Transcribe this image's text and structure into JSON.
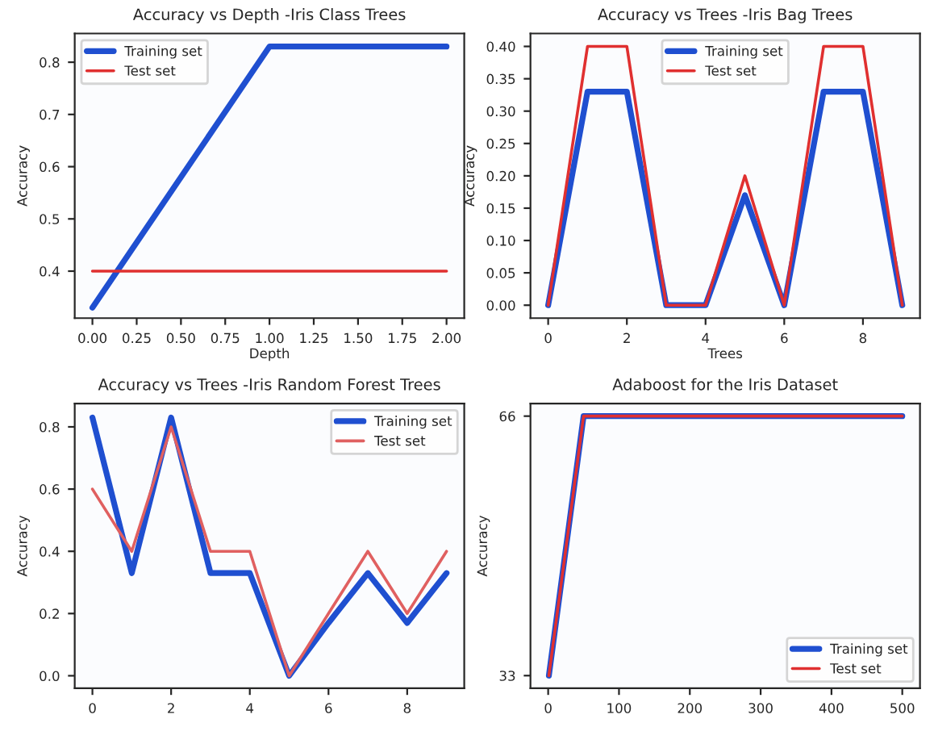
{
  "chart_data": [
    {
      "type": "line",
      "title": "Accuracy vs Depth -Iris Class Trees",
      "xlabel": "Depth",
      "ylabel": "Accuracy",
      "x": [
        0,
        1,
        2
      ],
      "xlim": [
        -0.1,
        2.1
      ],
      "ylim": [
        0.31,
        0.855
      ],
      "xticks": [
        {
          "value": 0,
          "label": "0.00"
        },
        {
          "value": 0.25,
          "label": "0.25"
        },
        {
          "value": 0.5,
          "label": "0.50"
        },
        {
          "value": 0.75,
          "label": "0.75"
        },
        {
          "value": 1,
          "label": "1.00"
        },
        {
          "value": 1.25,
          "label": "1.25"
        },
        {
          "value": 1.5,
          "label": "1.50"
        },
        {
          "value": 1.75,
          "label": "1.75"
        },
        {
          "value": 2,
          "label": "2.00"
        }
      ],
      "yticks": [
        0.4,
        0.5,
        0.6,
        0.7,
        0.8
      ],
      "legend": "top left",
      "series": [
        {
          "name": "Training set",
          "color": "#1f4fd0",
          "values": [
            0.33,
            0.83,
            0.83
          ]
        },
        {
          "name": "Test set",
          "color": "#e03030",
          "values": [
            0.4,
            0.4,
            0.4
          ]
        }
      ]
    },
    {
      "type": "line",
      "title": "Accuracy vs Trees -Iris Bag Trees",
      "xlabel": "Trees",
      "ylabel": "Accuracy",
      "x": [
        0,
        1,
        2,
        3,
        4,
        5,
        6,
        7,
        8,
        9
      ],
      "xlim": [
        -0.45,
        9.45
      ],
      "ylim": [
        -0.02,
        0.42
      ],
      "xticks": [
        0,
        2,
        4,
        6,
        8
      ],
      "yticks": [
        {
          "value": 0,
          "label": "0.00"
        },
        {
          "value": 0.05,
          "label": "0.05"
        },
        {
          "value": 0.1,
          "label": "0.10"
        },
        {
          "value": 0.15,
          "label": "0.15"
        },
        {
          "value": 0.2,
          "label": "0.20"
        },
        {
          "value": 0.25,
          "label": "0.25"
        },
        {
          "value": 0.3,
          "label": "0.30"
        },
        {
          "value": 0.35,
          "label": "0.35"
        },
        {
          "value": 0.4,
          "label": "0.40"
        }
      ],
      "legend": "top",
      "series": [
        {
          "name": "Training set",
          "color": "#1f4fd0",
          "values": [
            0,
            0.33,
            0.33,
            0,
            0,
            0.17,
            0,
            0.33,
            0.33,
            0
          ]
        },
        {
          "name": "Test set",
          "color": "#e03030",
          "values": [
            0,
            0.4,
            0.4,
            0,
            0,
            0.2,
            0,
            0.4,
            0.4,
            0
          ]
        }
      ]
    },
    {
      "type": "line",
      "title": "Accuracy vs Trees -Iris Random Forest Trees",
      "ylabel": "Accuracy",
      "x": [
        0,
        1,
        2,
        3,
        4,
        5,
        6,
        7,
        8,
        9
      ],
      "xlim": [
        -0.45,
        9.45
      ],
      "ylim": [
        -0.04,
        0.875
      ],
      "xticks": [
        0,
        2,
        4,
        6,
        8
      ],
      "yticks": [
        {
          "value": 0,
          "label": "0.0"
        },
        {
          "value": 0.2,
          "label": "0.2"
        },
        {
          "value": 0.4,
          "label": "0.4"
        },
        {
          "value": 0.6,
          "label": "0.6"
        },
        {
          "value": 0.8,
          "label": "0.8"
        }
      ],
      "legend": "top right",
      "series": [
        {
          "name": "Training set",
          "color": "#1f4fd0",
          "values": [
            0.83,
            0.33,
            0.83,
            0.33,
            0.33,
            0,
            0.17,
            0.33,
            0.17,
            0.33
          ]
        },
        {
          "name": "Test set",
          "color": "#e06060",
          "values": [
            0.6,
            0.4,
            0.8,
            0.4,
            0.4,
            0,
            0.2,
            0.4,
            0.2,
            0.4
          ]
        }
      ]
    },
    {
      "type": "line",
      "title": "Adaboost for the Iris Dataset",
      "ylabel": "Accuracy",
      "x": [
        1,
        50,
        100,
        150,
        200,
        250,
        300,
        350,
        400,
        450,
        500
      ],
      "xlim": [
        -25,
        525
      ],
      "ylim": [
        31.4,
        67.6
      ],
      "xticks": [
        0,
        100,
        200,
        300,
        400,
        500
      ],
      "yticks": [
        33,
        66
      ],
      "legend": "bottom right",
      "series": [
        {
          "name": "Training set",
          "color": "#1f4fd0",
          "values": [
            33,
            66,
            66,
            66,
            66,
            66,
            66,
            66,
            66,
            66,
            66
          ]
        },
        {
          "name": "Test set",
          "color": "#e03030",
          "values": [
            33,
            66,
            66,
            66,
            66,
            66,
            66,
            66,
            66,
            66,
            66
          ]
        }
      ]
    }
  ]
}
